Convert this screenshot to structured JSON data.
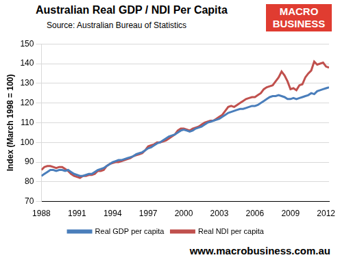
{
  "chart_data": {
    "type": "line",
    "title": "Australian Real GDP / NDI Per Capita",
    "subtitle": "Source: Australian Bureau of Statistics",
    "logo_lines": [
      "MACRO",
      "BUSINESS"
    ],
    "footer": "www.macrobusiness.com.au",
    "y_label": "Index (March 1998 = 100)",
    "x": [
      1988,
      1988.25,
      1988.5,
      1988.75,
      1989,
      1989.25,
      1989.5,
      1989.75,
      1990,
      1990.25,
      1990.5,
      1990.75,
      1991,
      1991.25,
      1991.5,
      1991.75,
      1992,
      1992.25,
      1992.5,
      1992.75,
      1993,
      1993.25,
      1993.5,
      1993.75,
      1994,
      1994.25,
      1994.5,
      1994.75,
      1995,
      1995.25,
      1995.5,
      1995.75,
      1996,
      1996.25,
      1996.5,
      1996.75,
      1997,
      1997.25,
      1997.5,
      1997.75,
      1998,
      1998.25,
      1998.5,
      1998.75,
      1999,
      1999.25,
      1999.5,
      1999.75,
      2000,
      2000.25,
      2000.5,
      2000.75,
      2001,
      2001.25,
      2001.5,
      2001.75,
      2002,
      2002.25,
      2002.5,
      2002.75,
      2003,
      2003.25,
      2003.5,
      2003.75,
      2004,
      2004.25,
      2004.5,
      2004.75,
      2005,
      2005.25,
      2005.5,
      2005.75,
      2006,
      2006.25,
      2006.5,
      2006.75,
      2007,
      2007.25,
      2007.5,
      2007.75,
      2008,
      2008.25,
      2008.5,
      2008.75,
      2009,
      2009.25,
      2009.5,
      2009.75,
      2010,
      2010.25,
      2010.5,
      2010.75,
      2011,
      2011.25,
      2011.5,
      2011.75,
      2012,
      2012.25
    ],
    "series": [
      {
        "name": "Real GDP per capita",
        "color": "#4a7ebb",
        "values": [
          83,
          84,
          85,
          86,
          86,
          85.5,
          86,
          86,
          85.5,
          86,
          85,
          84,
          83.5,
          83,
          83,
          83.5,
          84,
          84,
          85,
          86,
          86.5,
          87,
          88,
          89,
          90,
          90.5,
          91,
          91,
          91.5,
          92,
          92.5,
          93,
          94,
          94.5,
          95,
          96,
          97,
          97.5,
          98.5,
          99.5,
          100,
          101,
          102,
          103,
          103.5,
          104,
          105,
          106,
          106.5,
          106,
          105.5,
          106,
          107,
          107.5,
          108,
          109,
          110,
          110.5,
          111,
          111.5,
          112,
          113,
          114,
          115,
          115.5,
          116,
          116.5,
          117,
          117,
          117.5,
          118,
          118.5,
          118.5,
          119,
          120,
          121,
          122,
          123,
          123.5,
          123.5,
          124,
          123.5,
          123,
          122,
          122,
          122.5,
          122,
          122.5,
          123,
          123.5,
          124,
          125,
          124.5,
          126,
          126.5,
          127,
          127.5,
          128
        ]
      },
      {
        "name": "Real NDI per capita",
        "color": "#c0504d",
        "values": [
          86,
          87.5,
          88,
          88,
          87.5,
          87,
          87.5,
          87.5,
          86.5,
          85.5,
          84,
          83,
          82.5,
          82,
          83,
          83,
          83.5,
          83.5,
          84,
          85.5,
          85.5,
          86,
          88,
          89,
          89.5,
          90,
          90,
          90.5,
          91,
          91.5,
          92,
          93,
          93.5,
          94,
          94.5,
          96,
          98,
          98.5,
          99,
          100,
          100,
          100.5,
          101,
          102,
          103,
          104,
          106,
          107,
          107,
          106.5,
          106,
          107,
          107.5,
          108,
          109,
          110,
          110.5,
          111,
          111,
          112,
          113,
          114,
          116,
          118,
          118.5,
          118,
          119,
          120,
          121,
          122,
          122.5,
          123,
          123,
          124,
          125,
          127,
          128,
          128.5,
          129,
          131,
          133,
          136,
          134,
          131,
          127,
          127.5,
          126.5,
          129,
          129.5,
          133,
          135,
          136.5,
          141,
          139.5,
          140,
          140.5,
          138.5,
          138
        ]
      }
    ],
    "xlim": [
      1988,
      2012.25
    ],
    "xticks": [
      1988,
      1991,
      1994,
      1997,
      2000,
      2003,
      2006,
      2009,
      2012
    ],
    "ylim": [
      70,
      150
    ],
    "yticks": [
      70,
      80,
      90,
      100,
      110,
      120,
      130,
      140,
      150
    ],
    "grid": true,
    "legend": "bottom"
  }
}
